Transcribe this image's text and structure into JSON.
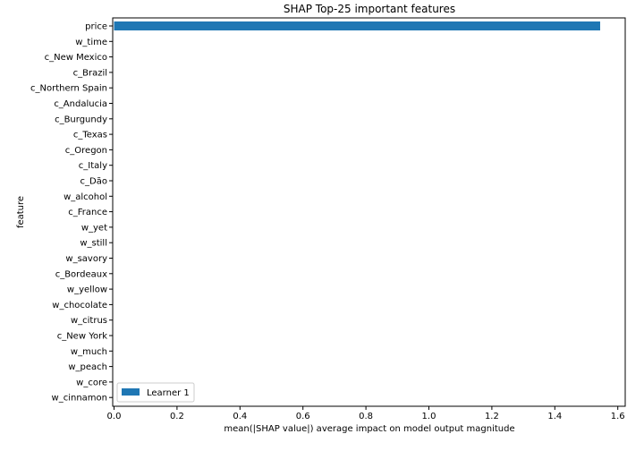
{
  "chart_data": {
    "type": "bar",
    "orientation": "horizontal",
    "title": "SHAP Top-25 important features",
    "xlabel": "mean(|SHAP value|) average impact on model output magnitude",
    "ylabel": "feature",
    "xlim": [
      0,
      1.62
    ],
    "xticks": [
      "0.0",
      "0.2",
      "0.4",
      "0.6",
      "0.8",
      "1.0",
      "1.2",
      "1.4",
      "1.6"
    ],
    "categories": [
      "price",
      "w_time",
      "c_New Mexico",
      "c_Brazil",
      "c_Northern Spain",
      "c_Andalucia",
      "c_Burgundy",
      "c_Texas",
      "c_Oregon",
      "c_Italy",
      "c_Dão",
      "w_alcohol",
      "c_France",
      "w_yet",
      "w_still",
      "w_savory",
      "c_Bordeaux",
      "w_yellow",
      "w_chocolate",
      "w_citrus",
      "c_New York",
      "w_much",
      "w_peach",
      "w_core",
      "w_cinnamon"
    ],
    "series": [
      {
        "name": "Learner 1",
        "color": "#1f77b4",
        "values": [
          1.544,
          0,
          0,
          0,
          0,
          0,
          0,
          0,
          0,
          0,
          0,
          0,
          0,
          0,
          0,
          0,
          0,
          0,
          0,
          0,
          0,
          0,
          0,
          0,
          0
        ]
      }
    ],
    "legend_position": "lower-left",
    "grid": false
  }
}
